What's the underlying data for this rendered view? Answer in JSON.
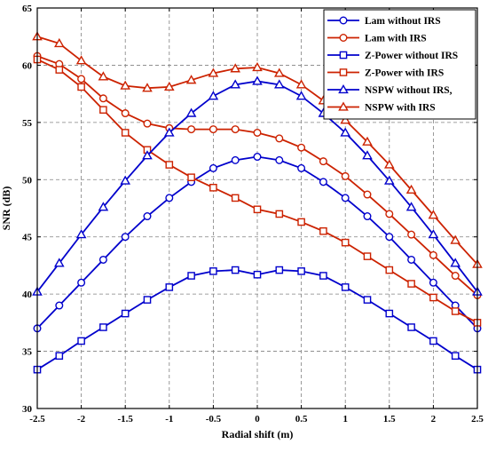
{
  "chart_data": {
    "type": "line",
    "xlabel": "Radial shift (m)",
    "ylabel": "SNR (dB)",
    "xlim": [
      -2.5,
      2.5
    ],
    "ylim": [
      30,
      65
    ],
    "grid": true,
    "legend_position": "top-right",
    "x": [
      -2.5,
      -2.25,
      -2.0,
      -1.75,
      -1.5,
      -1.25,
      -1.0,
      -0.75,
      -0.5,
      -0.25,
      0.0,
      0.25,
      0.5,
      0.75,
      1.0,
      1.25,
      1.5,
      1.75,
      2.0,
      2.25,
      2.5
    ],
    "xticks": [
      "-2.5",
      "-2",
      "-1.5",
      "-1",
      "-0.5",
      "0",
      "0.5",
      "1",
      "1.5",
      "2",
      "2.5"
    ],
    "yticks": [
      "30",
      "35",
      "40",
      "45",
      "50",
      "55",
      "60",
      "65"
    ],
    "series": [
      {
        "name": "Lam without IRS",
        "color": "#0000cc",
        "marker": "circle",
        "values": [
          37.0,
          39.0,
          41.0,
          43.0,
          45.0,
          46.8,
          48.4,
          49.8,
          51.0,
          51.7,
          52.0,
          51.7,
          51.0,
          49.8,
          48.4,
          46.8,
          45.0,
          43.0,
          41.0,
          39.0,
          37.0
        ]
      },
      {
        "name": "Lam with IRS",
        "color": "#cc2200",
        "marker": "circle",
        "values": [
          60.8,
          60.1,
          58.8,
          57.1,
          55.8,
          54.9,
          54.5,
          54.4,
          54.4,
          54.4,
          54.1,
          53.6,
          52.8,
          51.6,
          50.3,
          48.7,
          47.0,
          45.2,
          43.4,
          41.6,
          39.9
        ]
      },
      {
        "name": "Z-Power without IRS",
        "color": "#0000cc",
        "marker": "square",
        "values": [
          33.4,
          34.6,
          35.9,
          37.1,
          38.3,
          39.5,
          40.6,
          41.6,
          42.0,
          42.1,
          41.7,
          42.1,
          42.0,
          41.6,
          40.6,
          39.5,
          38.3,
          37.1,
          35.9,
          34.6,
          33.4
        ]
      },
      {
        "name": "Z-Power with IRS",
        "color": "#cc2200",
        "marker": "square",
        "values": [
          60.5,
          59.6,
          58.1,
          56.1,
          54.1,
          52.6,
          51.3,
          50.2,
          49.3,
          48.4,
          47.4,
          47.0,
          46.3,
          45.5,
          44.5,
          43.3,
          42.1,
          40.9,
          39.7,
          38.5,
          37.5
        ]
      },
      {
        "name": "NSPW without IRS,",
        "color": "#0000cc",
        "marker": "triangle",
        "values": [
          40.2,
          42.7,
          45.2,
          47.6,
          49.9,
          52.1,
          54.1,
          55.8,
          57.3,
          58.3,
          58.6,
          58.3,
          57.3,
          55.8,
          54.1,
          52.1,
          49.9,
          47.6,
          45.2,
          42.7,
          40.2
        ]
      },
      {
        "name": "NSPW with IRS",
        "color": "#cc2200",
        "marker": "triangle",
        "values": [
          62.5,
          61.9,
          60.4,
          59.0,
          58.2,
          58.0,
          58.1,
          58.7,
          59.3,
          59.7,
          59.8,
          59.3,
          58.3,
          56.9,
          55.2,
          53.3,
          51.3,
          49.1,
          46.9,
          44.7,
          42.6
        ]
      }
    ]
  }
}
